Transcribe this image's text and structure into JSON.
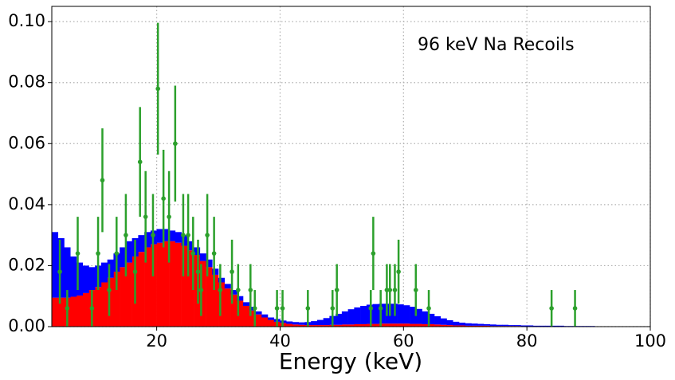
{
  "chart_data": {
    "type": "histogram",
    "annotation": "96 keV Na Recoils",
    "xlabel": "Energy (keV)",
    "xlim": [
      3,
      100
    ],
    "ylim": [
      0,
      0.105
    ],
    "xticks": [
      20,
      40,
      60,
      80,
      100
    ],
    "yticks": [
      {
        "value": 0,
        "label": "0.00"
      },
      {
        "value": 0.02,
        "label": "0.02"
      },
      {
        "value": 0.04,
        "label": "0.04"
      },
      {
        "value": 0.06,
        "label": "0.06"
      },
      {
        "value": 0.08,
        "label": "0.08"
      },
      {
        "value": 0.1,
        "label": "0.10"
      }
    ],
    "grid": true,
    "stacked": true,
    "bins": [
      3,
      4,
      5,
      6,
      7,
      8,
      9,
      10,
      11,
      12,
      13,
      14,
      15,
      16,
      17,
      18,
      19,
      20,
      21,
      22,
      23,
      24,
      25,
      26,
      27,
      28,
      29,
      30,
      31,
      32,
      33,
      34,
      35,
      36,
      37,
      38,
      39,
      40,
      41,
      42,
      43,
      44,
      45,
      46,
      47,
      48,
      49,
      50,
      51,
      52,
      53,
      54,
      55,
      56,
      57,
      58,
      59,
      60,
      61,
      62,
      63,
      64,
      65,
      66,
      67,
      68,
      69,
      70,
      71,
      72,
      73,
      74,
      75,
      76,
      77,
      78,
      79,
      80,
      81,
      82,
      83,
      84,
      85,
      86,
      87,
      88,
      89,
      90,
      91,
      92,
      93,
      94,
      95,
      96,
      97,
      98,
      99,
      100
    ],
    "series": [
      {
        "color": "#ff0000",
        "values": [
          0.0095,
          0.0095,
          0.0095,
          0.0098,
          0.0102,
          0.011,
          0.012,
          0.013,
          0.0145,
          0.016,
          0.018,
          0.0195,
          0.021,
          0.023,
          0.0245,
          0.026,
          0.027,
          0.0275,
          0.028,
          0.028,
          0.0275,
          0.0265,
          0.025,
          0.0235,
          0.0215,
          0.0195,
          0.017,
          0.0145,
          0.0125,
          0.0105,
          0.0085,
          0.0068,
          0.0053,
          0.004,
          0.003,
          0.0022,
          0.0016,
          0.0012,
          0.0009,
          0.0007,
          0.0006,
          0.0005,
          0.0005,
          0.0005,
          0.0005,
          0.0006,
          0.0006,
          0.0007,
          0.0007,
          0.0008,
          0.0008,
          0.0009,
          0.0009,
          0.001,
          0.001,
          0.001,
          0.001,
          0.001,
          0.0009,
          0.0009,
          0.0008,
          0.0008,
          0.0007,
          0.0006,
          0.0005,
          0.0004,
          0.0004,
          0.0003,
          0.0003,
          0.0003,
          0.0003,
          0.0002,
          0.0002,
          0.0002,
          0.0002,
          0.0002,
          0.0001,
          0.0001,
          0.0001,
          0.0001,
          0.0001,
          0.0001,
          0.0001,
          0.0001,
          0.0001,
          0.0001,
          0.0001,
          0.0001,
          0,
          0,
          0,
          0,
          0,
          0,
          0,
          0,
          0
        ]
      },
      {
        "color": "#0000ff",
        "values": [
          0.0215,
          0.0195,
          0.0165,
          0.0132,
          0.0108,
          0.009,
          0.0075,
          0.007,
          0.0065,
          0.006,
          0.006,
          0.0065,
          0.007,
          0.006,
          0.0055,
          0.005,
          0.0045,
          0.0045,
          0.004,
          0.0035,
          0.0035,
          0.0035,
          0.003,
          0.0025,
          0.0025,
          0.0025,
          0.002,
          0.0015,
          0.0015,
          0.0015,
          0.0015,
          0.0012,
          0.0012,
          0.001,
          0.001,
          0.0008,
          0.0009,
          0.0008,
          0.0008,
          0.0008,
          0.0008,
          0.001,
          0.0013,
          0.0017,
          0.0023,
          0.0029,
          0.0036,
          0.0043,
          0.005,
          0.0055,
          0.006,
          0.0063,
          0.0065,
          0.0065,
          0.0065,
          0.0065,
          0.0063,
          0.006,
          0.0056,
          0.0049,
          0.0042,
          0.0034,
          0.0027,
          0.0021,
          0.0016,
          0.0012,
          0.0009,
          0.0008,
          0.0007,
          0.0006,
          0.0005,
          0.0005,
          0.0004,
          0.0004,
          0.0003,
          0.0003,
          0.0003,
          0.0003,
          0.0002,
          0.0002,
          0.0002,
          0.0002,
          0.0002,
          0.0001,
          0.0001,
          0.0001,
          0.0001,
          0.0001,
          0.0001,
          0.0001,
          0.0001,
          0.0001,
          0.0001,
          0,
          0,
          0,
          0
        ]
      }
    ],
    "points": {
      "color": "#2ca02c",
      "x": [
        4.3,
        5.5,
        7.2,
        9.5,
        10.5,
        11.2,
        12.3,
        13.5,
        15,
        16.5,
        17.3,
        18.2,
        19.4,
        20.2,
        21.1,
        22,
        23,
        24.3,
        25.1,
        25.9,
        26.7,
        27.2,
        28.2,
        29.3,
        30.3,
        32.2,
        33.2,
        35.2,
        35.9,
        39.5,
        40.4,
        44.5,
        48.5,
        49.2,
        54.7,
        55.1,
        56.3,
        57.3,
        57.8,
        58.6,
        59.2,
        62,
        64.1,
        84,
        87.8
      ],
      "values": [
        0.018,
        0.006,
        0.024,
        0.006,
        0.024,
        0.048,
        0.012,
        0.024,
        0.03,
        0.018,
        0.054,
        0.036,
        0.03,
        0.078,
        0.042,
        0.036,
        0.06,
        0.03,
        0.03,
        0.024,
        0.018,
        0.012,
        0.03,
        0.024,
        0.012,
        0.018,
        0.012,
        0.012,
        0.006,
        0.006,
        0.006,
        0.006,
        0.006,
        0.012,
        0.006,
        0.024,
        0.006,
        0.012,
        0.012,
        0.012,
        0.018,
        0.012,
        0.006,
        0.006,
        0.006
      ],
      "errors": [
        0.0105,
        0.006,
        0.012,
        0.006,
        0.012,
        0.017,
        0.0085,
        0.012,
        0.0135,
        0.0105,
        0.018,
        0.015,
        0.0135,
        0.0216,
        0.016,
        0.015,
        0.019,
        0.0135,
        0.0135,
        0.012,
        0.0105,
        0.0085,
        0.0135,
        0.012,
        0.0085,
        0.0105,
        0.0085,
        0.0085,
        0.006,
        0.006,
        0.006,
        0.006,
        0.006,
        0.0085,
        0.006,
        0.012,
        0.006,
        0.0085,
        0.0085,
        0.0085,
        0.0105,
        0.0085,
        0.006,
        0.006,
        0.006
      ]
    }
  }
}
